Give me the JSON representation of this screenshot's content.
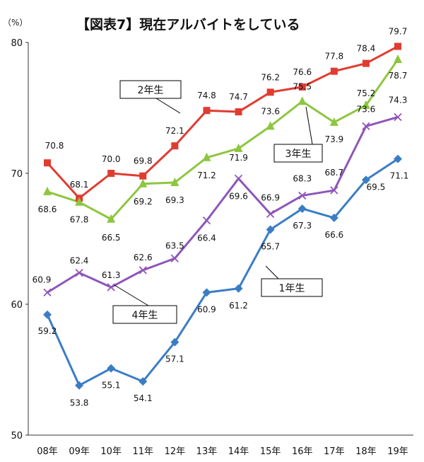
{
  "chart_data": {
    "type": "line",
    "title": "【図表7】現在アルバイトをしている",
    "ylabel": "（%）",
    "xlabel": "",
    "ylim": [
      50,
      80
    ],
    "yticks": [
      "50",
      "60",
      "70",
      "80"
    ],
    "grid": false,
    "legend": "callout labels on lines",
    "categories": [
      "08年",
      "09年",
      "10年",
      "11年",
      "12年",
      "13年",
      "14年",
      "15年",
      "16年",
      "17年",
      "18年",
      "19年"
    ],
    "series": [
      {
        "name": "1年生",
        "color": "#3b7dc4",
        "marker": "diamond",
        "values": [
          59.2,
          53.8,
          55.1,
          54.1,
          57.1,
          60.9,
          61.2,
          65.7,
          67.3,
          66.6,
          69.5,
          71.1
        ],
        "labels": [
          "59.2",
          "53.8",
          "55.1",
          "54.1",
          "57.1",
          "60.9",
          "61.2",
          "65.7",
          "67.3",
          "66.6",
          "69.5",
          "71.1"
        ]
      },
      {
        "name": "2年生",
        "color": "#e03c31",
        "marker": "square",
        "values": [
          70.8,
          68.1,
          70.0,
          69.8,
          72.1,
          74.8,
          74.7,
          76.2,
          76.6,
          77.8,
          78.4,
          79.7
        ],
        "labels": [
          "70.8",
          "68.1",
          "70.0",
          "69.8",
          "72.1",
          "74.8",
          "74.7",
          "76.2",
          "76.6",
          "77.8",
          "78.4",
          "79.7"
        ]
      },
      {
        "name": "3年生",
        "color": "#8dc63f",
        "marker": "triangle",
        "values": [
          68.6,
          67.8,
          66.5,
          69.2,
          69.3,
          71.2,
          71.9,
          73.6,
          75.5,
          73.9,
          75.2,
          78.7
        ],
        "labels": [
          "68.6",
          "67.8",
          "66.5",
          "69.2",
          "69.3",
          "71.2",
          "71.9",
          "73.6",
          "75.5",
          "73.9",
          "75.2",
          "78.7"
        ]
      },
      {
        "name": "4年生",
        "color": "#8e56b8",
        "marker": "x",
        "values": [
          60.9,
          62.4,
          61.3,
          62.6,
          63.5,
          66.4,
          69.6,
          66.9,
          68.3,
          68.7,
          73.6,
          74.3
        ],
        "labels": [
          "60.9",
          "62.4",
          "61.3",
          "62.6",
          "63.5",
          "66.4",
          "69.6",
          "66.9",
          "68.3",
          "68.7",
          "73.6",
          "74.3"
        ]
      }
    ]
  }
}
